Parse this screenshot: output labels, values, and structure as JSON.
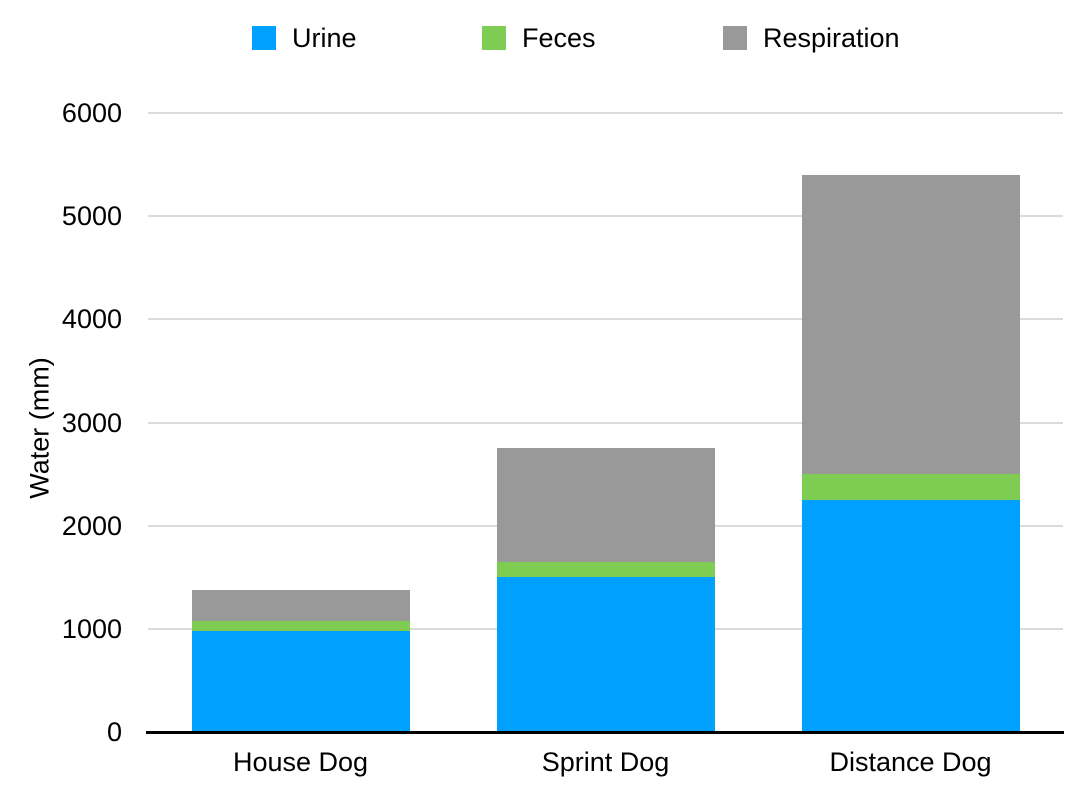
{
  "chart_data": {
    "type": "bar",
    "stacked": true,
    "title": "",
    "categories": [
      "House Dog",
      "Sprint Dog",
      "Distance Dog"
    ],
    "series": [
      {
        "name": "Urine",
        "color": "#00A0FF",
        "values": [
          975,
          1500,
          2250
        ]
      },
      {
        "name": "Feces",
        "color": "#7ECC52",
        "values": [
          100,
          150,
          250
        ]
      },
      {
        "name": "Respiration",
        "color": "#999999",
        "values": [
          300,
          1100,
          2900
        ]
      }
    ],
    "stack_totals": [
      1375,
      2750,
      5400
    ],
    "xlabel": "",
    "ylabel": "Water (mm)",
    "ylim": [
      0,
      6000
    ],
    "yticks": [
      0,
      1000,
      2000,
      3000,
      4000,
      5000,
      6000
    ],
    "grid": true,
    "legend_position": "top",
    "gridline_color": "#DBDBDB",
    "axis_color": "#000000",
    "background_color": "#FFFFFF"
  }
}
